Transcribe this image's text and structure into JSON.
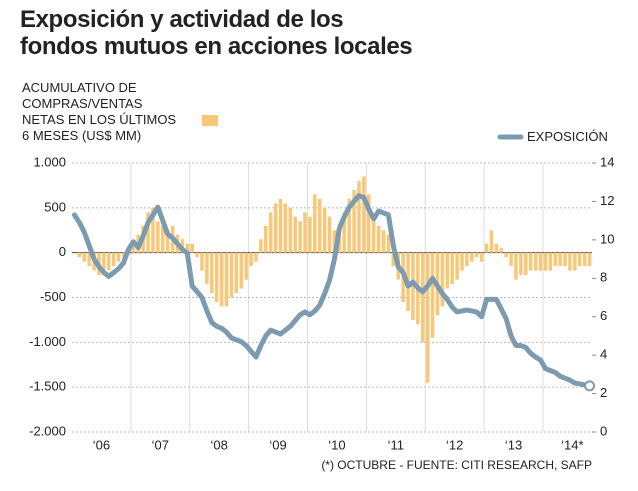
{
  "chart_data": {
    "type": "bar",
    "title": "Exposición y actividad de los\nfondos mutuos en acciones locales",
    "note": "(*) OCTUBRE - FUENTE: CITI RESEARCH, SAFP",
    "categories": [
      null,
      null,
      null,
      null,
      null,
      null,
      "‘06",
      null,
      null,
      null,
      null,
      null,
      null,
      null,
      null,
      null,
      null,
      null,
      "‘07",
      null,
      null,
      null,
      null,
      null,
      null,
      null,
      null,
      null,
      null,
      null,
      "‘08",
      null,
      null,
      null,
      null,
      null,
      null,
      null,
      null,
      null,
      null,
      null,
      "‘09",
      null,
      null,
      null,
      null,
      null,
      null,
      null,
      null,
      null,
      null,
      null,
      "‘10",
      null,
      null,
      null,
      null,
      null,
      null,
      null,
      null,
      null,
      null,
      null,
      "‘11",
      null,
      null,
      null,
      null,
      null,
      null,
      null,
      null,
      null,
      null,
      null,
      "‘12",
      null,
      null,
      null,
      null,
      null,
      null,
      null,
      null,
      null,
      null,
      null,
      "‘13",
      null,
      null,
      null,
      null,
      null,
      null,
      null,
      null,
      null,
      null,
      null,
      "‘14*",
      null,
      null,
      null
    ],
    "series": [
      {
        "name": "ACUMULATIVO DE\nCOMPRAS/VENTAS\nNETAS EN LOS ÚLTIMOS\n6 MESES (US$ MM)",
        "type": "bar",
        "axis": "y",
        "color": "#f8c878",
        "values": [
          0,
          -50,
          -100,
          -150,
          -200,
          -250,
          -200,
          -200,
          -150,
          -100,
          -50,
          50,
          100,
          200,
          300,
          450,
          500,
          350,
          300,
          250,
          300,
          200,
          150,
          100,
          100,
          -50,
          -200,
          -350,
          -450,
          -550,
          -600,
          -600,
          -500,
          -450,
          -400,
          -300,
          -150,
          -100,
          150,
          300,
          450,
          550,
          600,
          550,
          500,
          400,
          350,
          450,
          400,
          650,
          600,
          500,
          400,
          250,
          200,
          450,
          600,
          700,
          800,
          850,
          650,
          400,
          300,
          250,
          200,
          -150,
          -300,
          -550,
          -650,
          -750,
          -800,
          -1000,
          -1450,
          -950,
          -700,
          -600,
          -400,
          -350,
          -300,
          -200,
          -150,
          -100,
          -50,
          -100,
          100,
          250,
          100,
          50,
          -50,
          -150,
          -300,
          -250,
          -250,
          -200,
          -200,
          -200,
          -200,
          -200,
          -150,
          -150,
          -150,
          -200,
          -200,
          -150,
          -150,
          -150
        ]
      },
      {
        "name": "EXPOSICIÓN",
        "type": "line",
        "axis": "y2",
        "color": "#7d9bb0",
        "values": [
          11.3,
          10.9,
          10.4,
          9.7,
          9.0,
          8.6,
          8.3,
          8.1,
          8.3,
          8.5,
          8.8,
          9.5,
          9.9,
          9.6,
          10.2,
          10.9,
          11.3,
          11.7,
          11.0,
          10.3,
          10.1,
          9.8,
          9.5,
          9.3,
          7.6,
          7.3,
          7.0,
          6.3,
          5.7,
          5.5,
          5.4,
          5.2,
          4.9,
          4.8,
          4.7,
          4.5,
          4.2,
          3.9,
          4.5,
          5.0,
          5.3,
          5.2,
          5.1,
          5.3,
          5.5,
          5.8,
          6.1,
          6.25,
          6.1,
          6.3,
          6.6,
          7.2,
          7.9,
          9.0,
          10.6,
          11.2,
          11.7,
          12.0,
          12.3,
          12.2,
          11.6,
          11.1,
          11.5,
          11.4,
          11.3,
          9.7,
          8.6,
          8.3,
          7.6,
          7.8,
          7.5,
          7.3,
          7.6,
          8.0,
          7.6,
          7.2,
          6.9,
          6.5,
          6.25,
          6.3,
          6.35,
          6.3,
          6.25,
          6.0,
          6.9,
          6.9,
          6.9,
          6.4,
          5.9,
          5.0,
          4.5,
          4.5,
          4.4,
          4.1,
          3.9,
          3.75,
          3.3,
          3.2,
          3.1,
          2.9,
          2.8,
          2.7,
          2.55,
          2.5,
          2.45,
          2.4
        ]
      }
    ],
    "ylim": [
      -2000,
      1000
    ],
    "yticks": [
      {
        "value": 1000,
        "label": "1.000"
      },
      500,
      0,
      -500,
      {
        "value": -1000,
        "label": "-1.000"
      },
      {
        "value": -1500,
        "label": "-1.500"
      },
      {
        "value": -2000,
        "label": "-2.000"
      }
    ],
    "y2lim": [
      0,
      14
    ],
    "y2ticks": [
      0,
      2,
      4,
      6,
      8,
      10,
      12,
      14
    ],
    "grid": true
  }
}
